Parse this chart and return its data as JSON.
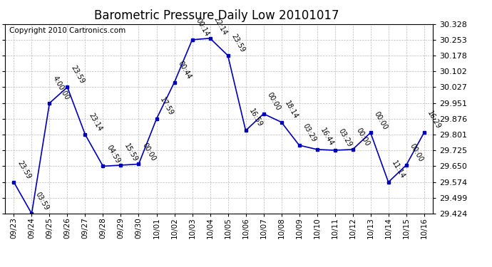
{
  "title": "Barometric Pressure Daily Low 20101017",
  "copyright": "Copyright 2010 Cartronics.com",
  "x_labels": [
    "09/23",
    "09/24",
    "09/25",
    "09/26",
    "09/27",
    "09/28",
    "09/29",
    "09/30",
    "10/01",
    "10/02",
    "10/03",
    "10/04",
    "10/05",
    "10/06",
    "10/07",
    "10/08",
    "10/09",
    "10/10",
    "10/11",
    "10/12",
    "10/13",
    "10/14",
    "10/15",
    "10/16"
  ],
  "x_values": [
    0,
    1,
    2,
    3,
    4,
    5,
    6,
    7,
    8,
    9,
    10,
    11,
    12,
    13,
    14,
    15,
    16,
    17,
    18,
    19,
    20,
    21,
    22,
    23
  ],
  "y_values": [
    29.574,
    29.424,
    29.951,
    30.027,
    29.801,
    29.65,
    29.655,
    29.66,
    29.876,
    30.05,
    30.253,
    30.26,
    30.178,
    29.82,
    29.9,
    29.86,
    29.75,
    29.73,
    29.726,
    29.73,
    29.81,
    29.574,
    29.655,
    29.81
  ],
  "point_labels": [
    "23:59",
    "03:59",
    "4:00:00",
    "23:59",
    "23:14",
    "04:59",
    "15:59",
    "00:00",
    "17:59",
    "00:44",
    "00:14",
    "22:14",
    "23:59",
    "16:59",
    "00:00",
    "18:14",
    "03:29",
    "16:44",
    "03:29",
    "00:00",
    "00:00",
    "11:14",
    "00:00",
    "16:29"
  ],
  "ylim": [
    29.424,
    30.328
  ],
  "yticks": [
    29.424,
    29.499,
    29.574,
    29.65,
    29.725,
    29.801,
    29.876,
    29.951,
    30.027,
    30.102,
    30.178,
    30.253,
    30.328
  ],
  "line_color": "#0000bb",
  "marker_color": "#0000bb",
  "bg_color": "#ffffff",
  "grid_color": "#bbbbbb",
  "title_fontsize": 12,
  "copyright_fontsize": 7.5,
  "label_fontsize": 7
}
